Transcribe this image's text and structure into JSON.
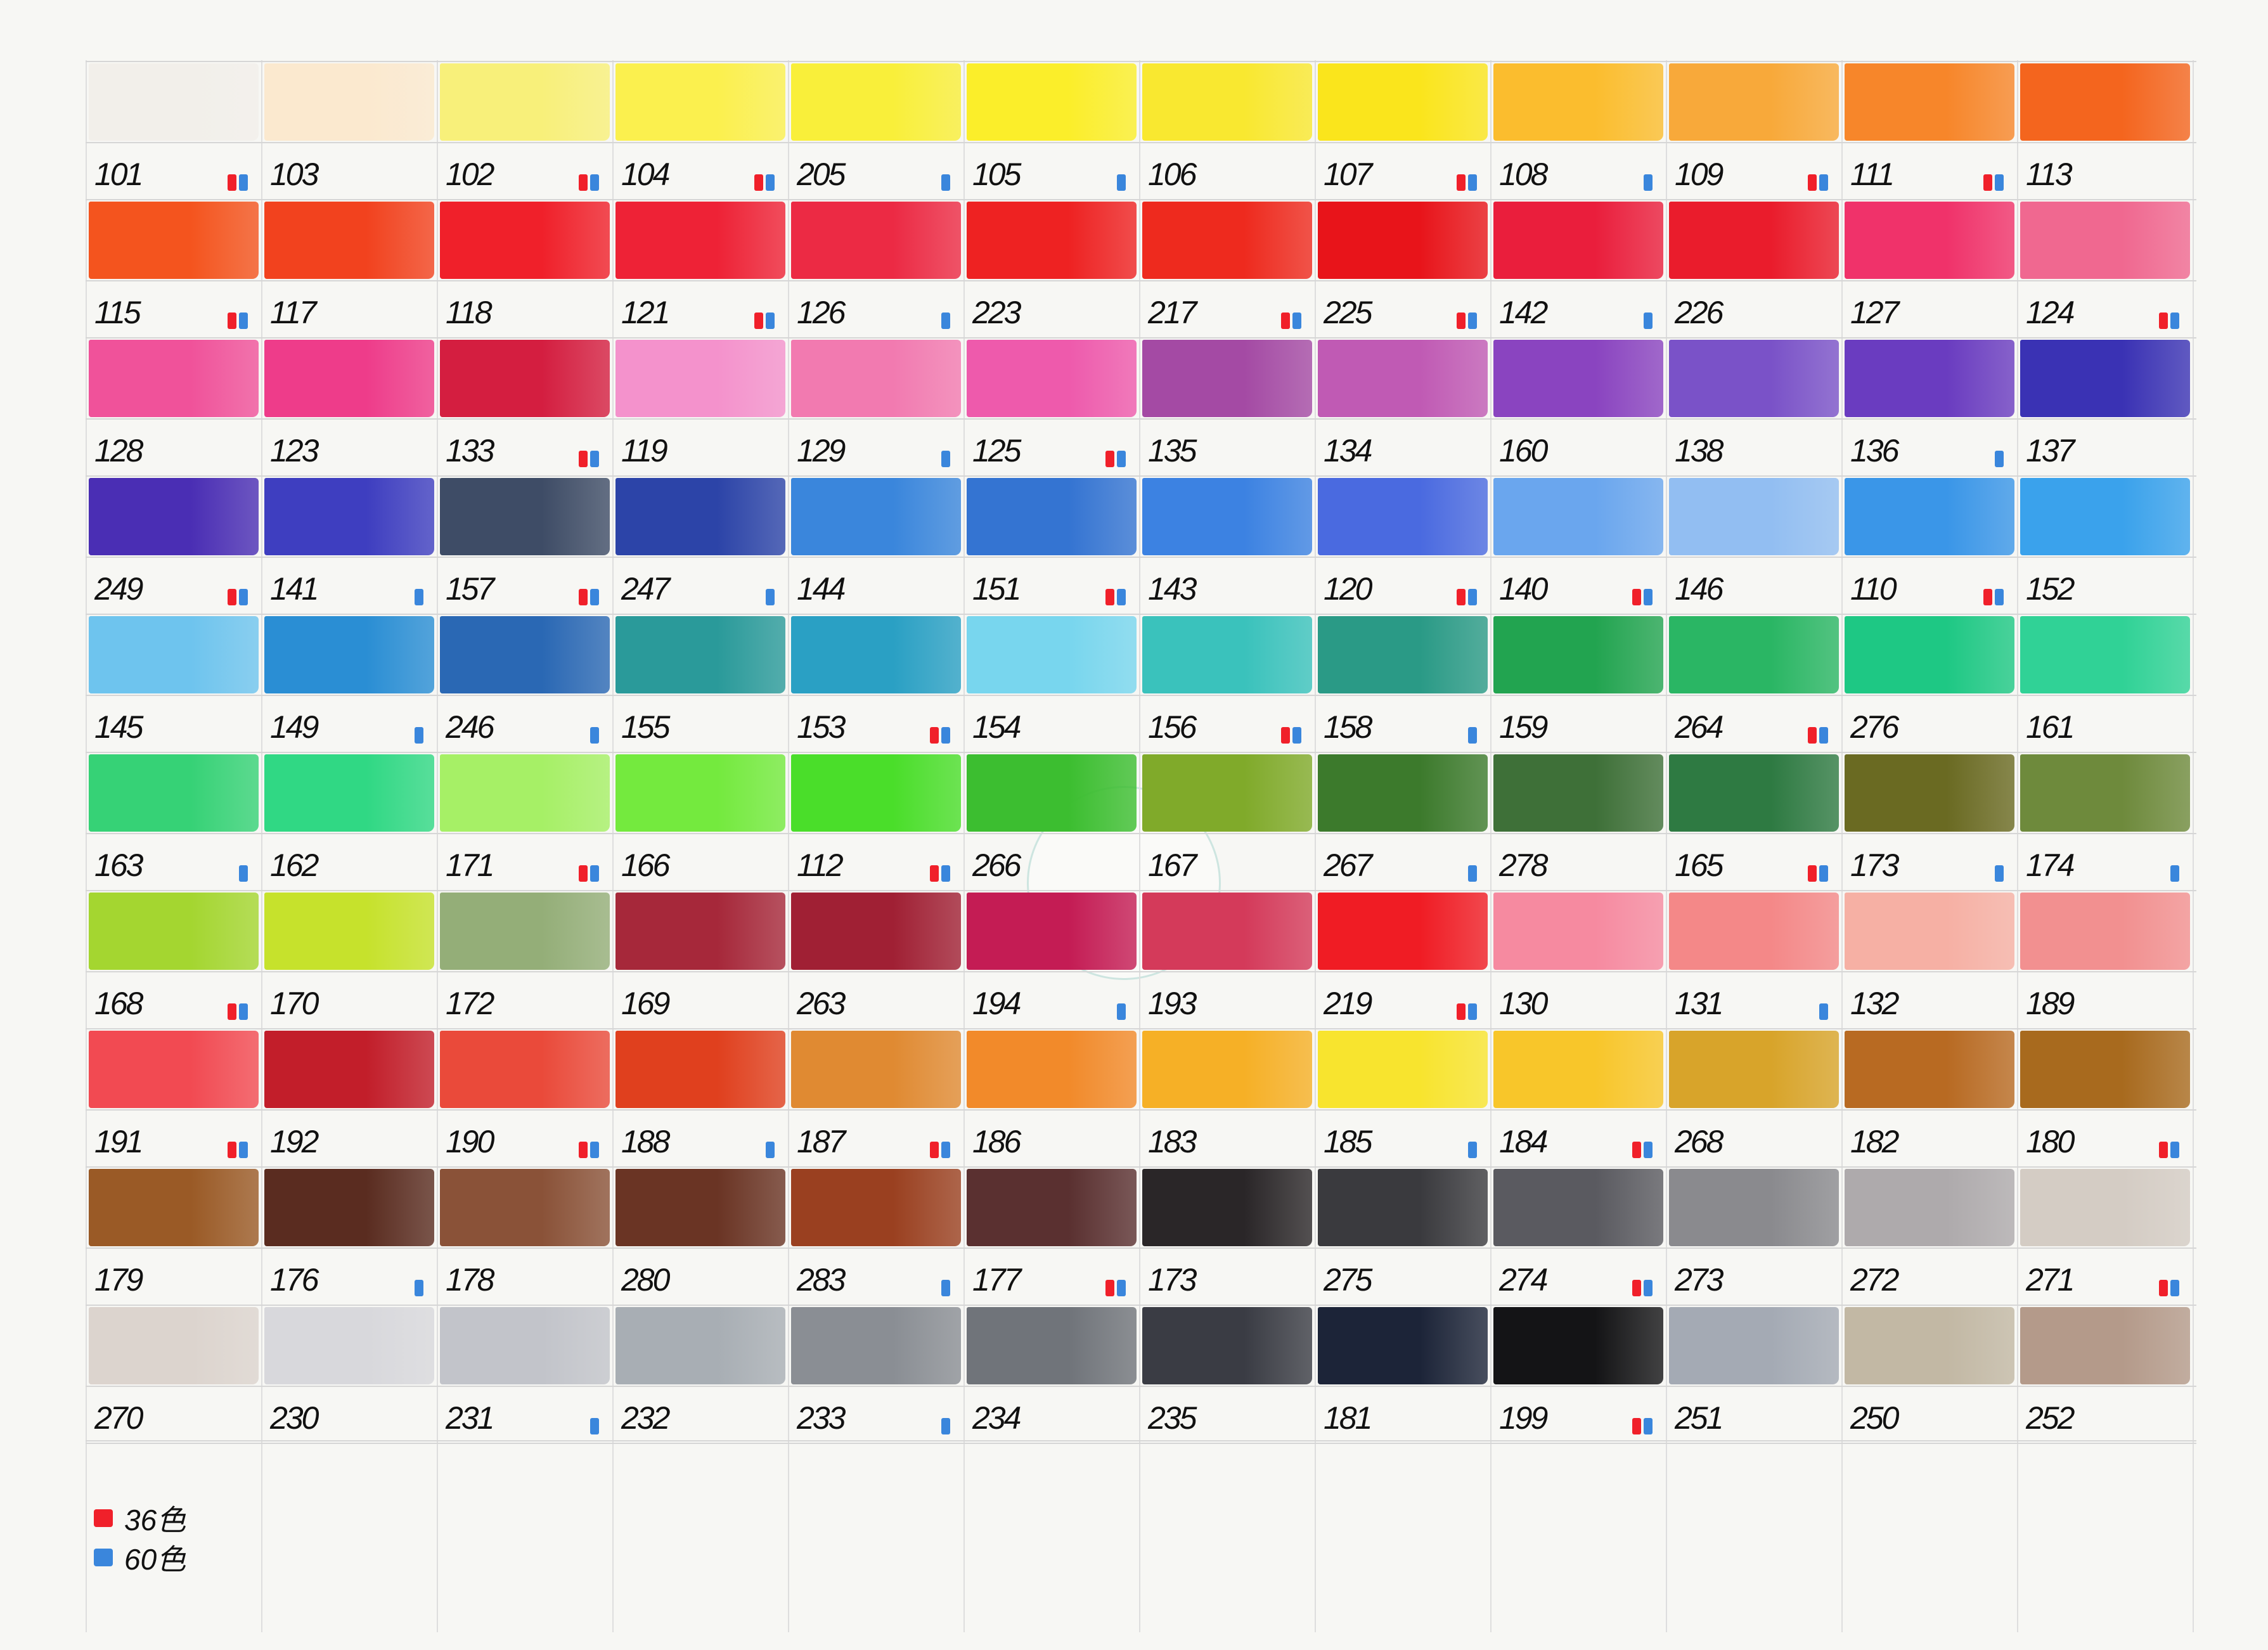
{
  "colors": {
    "set36": "#f0202a",
    "set60": "#3a86dc"
  },
  "legend": [
    {
      "set": "36",
      "label": "36色",
      "color": "#f0202a"
    },
    {
      "set": "60",
      "label": "60色",
      "color": "#3a86dc"
    }
  ],
  "rows": [
    {
      "swatches": [
        {
          "code": "101",
          "color": "#f2efea",
          "sets": "rb"
        },
        {
          "code": "103",
          "color": "#fbe9cf",
          "sets": ""
        },
        {
          "code": "102",
          "color": "#f8f07a",
          "sets": "rb"
        },
        {
          "code": "104",
          "color": "#fbf04e",
          "sets": "rb"
        },
        {
          "code": "205",
          "color": "#f9ef3a",
          "sets": "b"
        },
        {
          "code": "105",
          "color": "#fbee2a",
          "sets": "b"
        },
        {
          "code": "106",
          "color": "#f9e830",
          "sets": ""
        },
        {
          "code": "107",
          "color": "#fae51c",
          "sets": "rb"
        },
        {
          "code": "108",
          "color": "#fbbd2e",
          "sets": "b"
        },
        {
          "code": "109",
          "color": "#f8a93a",
          "sets": "rb"
        },
        {
          "code": "111",
          "color": "#f7862a",
          "sets": "rb"
        },
        {
          "code": "113",
          "color": "#f4651e",
          "sets": ""
        }
      ]
    },
    {
      "swatches": [
        {
          "code": "115",
          "color": "#f4541e",
          "sets": "rb"
        },
        {
          "code": "117",
          "color": "#f2421e",
          "sets": ""
        },
        {
          "code": "118",
          "color": "#f0202a",
          "sets": ""
        },
        {
          "code": "121",
          "color": "#ee2236",
          "sets": "rb"
        },
        {
          "code": "126",
          "color": "#ec2a44",
          "sets": "b"
        },
        {
          "code": "223",
          "color": "#ee2222",
          "sets": ""
        },
        {
          "code": "217",
          "color": "#ee2a1e",
          "sets": "rb"
        },
        {
          "code": "225",
          "color": "#e8141a",
          "sets": "rb"
        },
        {
          "code": "142",
          "color": "#ea1e3c",
          "sets": "b"
        },
        {
          "code": "226",
          "color": "#ea1c2c",
          "sets": ""
        },
        {
          "code": "127",
          "color": "#f0326a",
          "sets": ""
        },
        {
          "code": "124",
          "color": "#f06890",
          "sets": "rb"
        }
      ]
    },
    {
      "swatches": [
        {
          "code": "128",
          "color": "#f0529a",
          "sets": ""
        },
        {
          "code": "123",
          "color": "#ee3c8a",
          "sets": ""
        },
        {
          "code": "133",
          "color": "#d41e40",
          "sets": "rb"
        },
        {
          "code": "119",
          "color": "#f492cc",
          "sets": ""
        },
        {
          "code": "129",
          "color": "#f27ab0",
          "sets": "b"
        },
        {
          "code": "125",
          "color": "#ee5aac",
          "sets": "rb"
        },
        {
          "code": "135",
          "color": "#a44aa4",
          "sets": ""
        },
        {
          "code": "134",
          "color": "#c05ab4",
          "sets": ""
        },
        {
          "code": "160",
          "color": "#8a44c0",
          "sets": ""
        },
        {
          "code": "138",
          "color": "#7a52c8",
          "sets": ""
        },
        {
          "code": "136",
          "color": "#6a3cc0",
          "sets": "b"
        },
        {
          "code": "137",
          "color": "#3a32b4",
          "sets": ""
        }
      ]
    },
    {
      "swatches": [
        {
          "code": "249",
          "color": "#4a2eb4",
          "sets": "rb"
        },
        {
          "code": "141",
          "color": "#3e3ec0",
          "sets": "b"
        },
        {
          "code": "157",
          "color": "#3e4c66",
          "sets": "rb"
        },
        {
          "code": "247",
          "color": "#2c44a8",
          "sets": "b"
        },
        {
          "code": "144",
          "color": "#3a86dc",
          "sets": ""
        },
        {
          "code": "151",
          "color": "#3474d2",
          "sets": "rb"
        },
        {
          "code": "143",
          "color": "#3c82e2",
          "sets": ""
        },
        {
          "code": "120",
          "color": "#4a6ae0",
          "sets": "rb"
        },
        {
          "code": "140",
          "color": "#6aa6ee",
          "sets": "rb"
        },
        {
          "code": "146",
          "color": "#92bef2",
          "sets": ""
        },
        {
          "code": "110",
          "color": "#3a96e8",
          "sets": "rb"
        },
        {
          "code": "152",
          "color": "#3aa2ec",
          "sets": ""
        }
      ]
    },
    {
      "swatches": [
        {
          "code": "145",
          "color": "#6ec4ee",
          "sets": ""
        },
        {
          "code": "149",
          "color": "#2a8ed4",
          "sets": "b"
        },
        {
          "code": "246",
          "color": "#2a68b4",
          "sets": "b"
        },
        {
          "code": "155",
          "color": "#2a9a9a",
          "sets": ""
        },
        {
          "code": "153",
          "color": "#2aa0c4",
          "sets": "rb"
        },
        {
          "code": "154",
          "color": "#78d6ee",
          "sets": ""
        },
        {
          "code": "156",
          "color": "#3ac2bc",
          "sets": "rb"
        },
        {
          "code": "158",
          "color": "#2a9a86",
          "sets": "b"
        },
        {
          "code": "159",
          "color": "#22a450",
          "sets": ""
        },
        {
          "code": "264",
          "color": "#2ab664",
          "sets": "rb"
        },
        {
          "code": "276",
          "color": "#1ec884",
          "sets": ""
        },
        {
          "code": "161",
          "color": "#30d296",
          "sets": ""
        }
      ]
    },
    {
      "swatches": [
        {
          "code": "163",
          "color": "#36d276",
          "sets": "b"
        },
        {
          "code": "162",
          "color": "#30d884",
          "sets": ""
        },
        {
          "code": "171",
          "color": "#a6f066",
          "sets": "rb"
        },
        {
          "code": "166",
          "color": "#74ea3e",
          "sets": ""
        },
        {
          "code": "112",
          "color": "#4ade2a",
          "sets": "rb"
        },
        {
          "code": "266",
          "color": "#3cbe30",
          "sets": ""
        },
        {
          "code": "167",
          "color": "#80aa2a",
          "sets": ""
        },
        {
          "code": "267",
          "color": "#3c7a2c",
          "sets": "b"
        },
        {
          "code": "278",
          "color": "#3e7038",
          "sets": ""
        },
        {
          "code": "165",
          "color": "#2e7a42",
          "sets": "rb"
        },
        {
          "code": "173",
          "color": "#6a6a22",
          "sets": "b"
        },
        {
          "code": "174",
          "color": "#6e8a3c",
          "sets": "b"
        }
      ]
    },
    {
      "swatches": [
        {
          "code": "168",
          "color": "#a4d630",
          "sets": "rb"
        },
        {
          "code": "170",
          "color": "#c6e22c",
          "sets": ""
        },
        {
          "code": "172",
          "color": "#94ae78",
          "sets": ""
        },
        {
          "code": "169",
          "color": "#a6283a",
          "sets": ""
        },
        {
          "code": "263",
          "color": "#a02034",
          "sets": ""
        },
        {
          "code": "194",
          "color": "#c41c54",
          "sets": "b"
        },
        {
          "code": "193",
          "color": "#d43a5a",
          "sets": ""
        },
        {
          "code": "219",
          "color": "#f01c24",
          "sets": "rb"
        },
        {
          "code": "130",
          "color": "#f68aa0",
          "sets": ""
        },
        {
          "code": "131",
          "color": "#f48888",
          "sets": "b"
        },
        {
          "code": "132",
          "color": "#f6b0a4",
          "sets": ""
        },
        {
          "code": "189",
          "color": "#f29090",
          "sets": ""
        }
      ]
    },
    {
      "swatches": [
        {
          "code": "191",
          "color": "#f24a52",
          "sets": "rb"
        },
        {
          "code": "192",
          "color": "#c21e2a",
          "sets": ""
        },
        {
          "code": "190",
          "color": "#ea4a3a",
          "sets": "rb"
        },
        {
          "code": "188",
          "color": "#e0401e",
          "sets": "b"
        },
        {
          "code": "187",
          "color": "#e08a32",
          "sets": "rb"
        },
        {
          "code": "186",
          "color": "#f28a2a",
          "sets": ""
        },
        {
          "code": "183",
          "color": "#f6b026",
          "sets": ""
        },
        {
          "code": "185",
          "color": "#f8e42e",
          "sets": "b"
        },
        {
          "code": "184",
          "color": "#f8c62a",
          "sets": "rb"
        },
        {
          "code": "268",
          "color": "#d8a42a",
          "sets": ""
        },
        {
          "code": "182",
          "color": "#b86a22",
          "sets": ""
        },
        {
          "code": "180",
          "color": "#a86a1e",
          "sets": "rb"
        }
      ]
    },
    {
      "swatches": [
        {
          "code": "179",
          "color": "#9a5a26",
          "sets": ""
        },
        {
          "code": "176",
          "color": "#5a2c20",
          "sets": "b"
        },
        {
          "code": "178",
          "color": "#8a5238",
          "sets": ""
        },
        {
          "code": "280",
          "color": "#6a3424",
          "sets": ""
        },
        {
          "code": "283",
          "color": "#9a4020",
          "sets": "b"
        },
        {
          "code": "177",
          "color": "#5a3030",
          "sets": "rb"
        },
        {
          "code": "173",
          "color": "#2a2628",
          "sets": ""
        },
        {
          "code": "275",
          "color": "#3a3a3e",
          "sets": ""
        },
        {
          "code": "274",
          "color": "#5a5a60",
          "sets": "rb"
        },
        {
          "code": "273",
          "color": "#8a8a8e",
          "sets": ""
        },
        {
          "code": "272",
          "color": "#aeaaac",
          "sets": ""
        },
        {
          "code": "271",
          "color": "#d4ccc4",
          "sets": "rb"
        }
      ]
    },
    {
      "swatches": [
        {
          "code": "270",
          "color": "#dcd4ce",
          "sets": ""
        },
        {
          "code": "230",
          "color": "#d8d8dc",
          "sets": ""
        },
        {
          "code": "231",
          "color": "#c2c4ca",
          "sets": "b"
        },
        {
          "code": "232",
          "color": "#a8aeb4",
          "sets": ""
        },
        {
          "code": "233",
          "color": "#8a8e94",
          "sets": "b"
        },
        {
          "code": "234",
          "color": "#70747a",
          "sets": ""
        },
        {
          "code": "235",
          "color": "#3a3c44",
          "sets": ""
        },
        {
          "code": "181",
          "color": "#1c2438",
          "sets": ""
        },
        {
          "code": "199",
          "color": "#141416",
          "sets": "rb"
        },
        {
          "code": "251",
          "color": "#a4aab4",
          "sets": ""
        },
        {
          "code": "250",
          "color": "#c2b8a4",
          "sets": ""
        },
        {
          "code": "252",
          "color": "#b49a8a",
          "sets": ""
        }
      ]
    }
  ]
}
